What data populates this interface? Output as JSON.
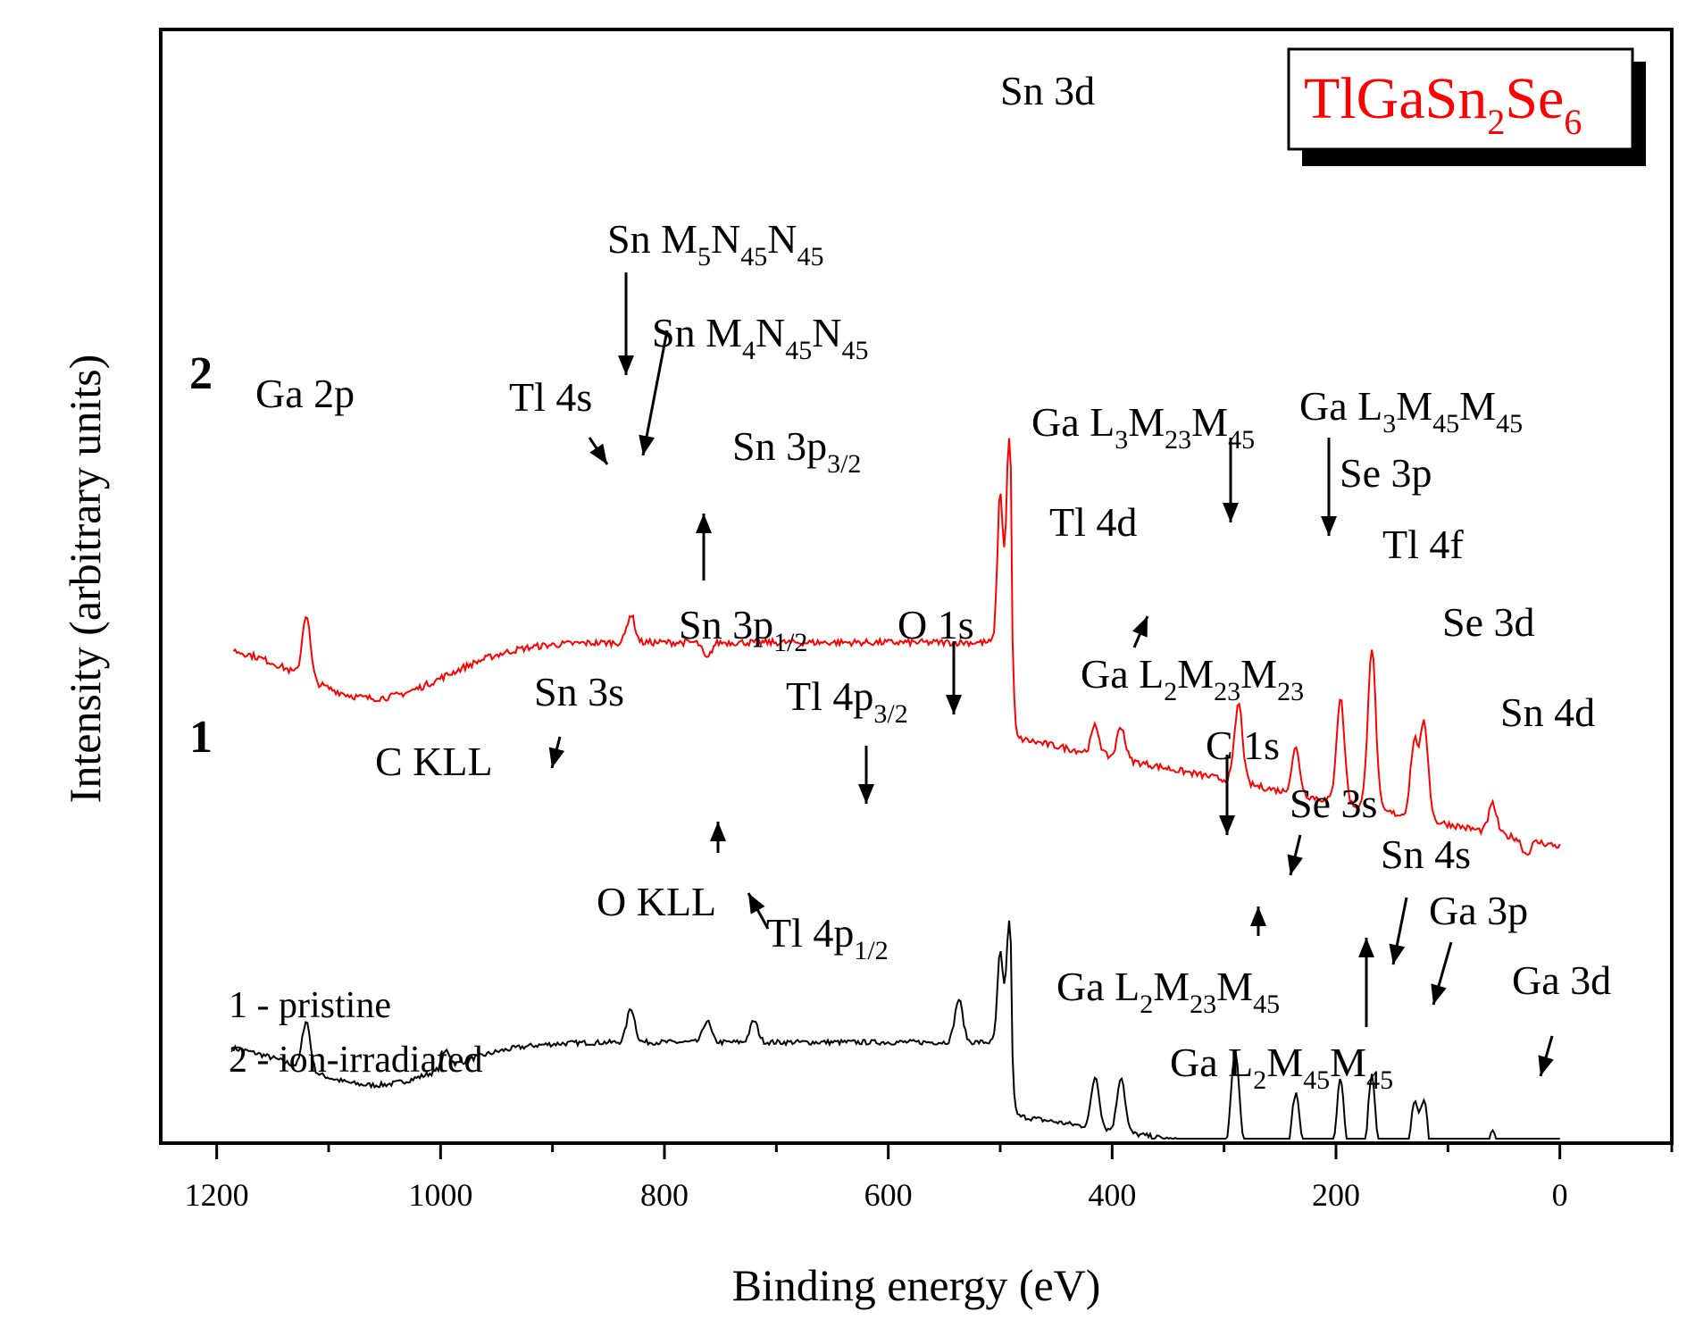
{
  "chart_data": {
    "type": "line",
    "title": "",
    "compound": {
      "base": "TlGaSn",
      "sub1": "2",
      "mid": "Se",
      "sub2": "6",
      "color": "#ff0000"
    },
    "xlabel": "Binding energy (eV)",
    "ylabel": "Intensity (arbitrary units)",
    "xlim": [
      1250,
      -100
    ],
    "x_reversed": true,
    "ylim": [
      0,
      1
    ],
    "x_ticks": [
      1200,
      1000,
      800,
      600,
      400,
      200,
      0
    ],
    "grid": false,
    "series": [
      {
        "name": "1 - pristine",
        "id": "1",
        "color": "#000000",
        "peaks": [
          {
            "x": 1120,
            "y": 0.45
          },
          {
            "x": 995,
            "y": 0.38
          },
          {
            "x": 830,
            "y": 0.48
          },
          {
            "x": 762,
            "y": 0.45
          },
          {
            "x": 720,
            "y": 0.45
          },
          {
            "x": 537,
            "y": 0.5
          },
          {
            "x": 500,
            "y": 0.61
          },
          {
            "x": 492,
            "y": 0.68
          },
          {
            "x": 415,
            "y": 0.32
          },
          {
            "x": 392,
            "y": 0.32
          },
          {
            "x": 290,
            "y": 0.38
          },
          {
            "x": 236,
            "y": 0.28
          },
          {
            "x": 196,
            "y": 0.31
          },
          {
            "x": 168,
            "y": 0.32
          },
          {
            "x": 130,
            "y": 0.26
          },
          {
            "x": 121,
            "y": 0.26
          },
          {
            "x": 60,
            "y": 0.2
          },
          {
            "x": 30,
            "y": 0.13
          }
        ]
      },
      {
        "name": "2 - ion-irradiated",
        "id": "2",
        "color": "#ff0000",
        "peaks": [
          {
            "x": 1120,
            "y": 0.9
          },
          {
            "x": 830,
            "y": 0.9
          },
          {
            "x": 762,
            "y": 0.82
          },
          {
            "x": 720,
            "y": 0.85
          },
          {
            "x": 500,
            "y": 1.12
          },
          {
            "x": 492,
            "y": 1.22
          },
          {
            "x": 415,
            "y": 0.7
          },
          {
            "x": 392,
            "y": 0.7
          },
          {
            "x": 287,
            "y": 0.74
          },
          {
            "x": 236,
            "y": 0.66
          },
          {
            "x": 196,
            "y": 0.75
          },
          {
            "x": 168,
            "y": 0.84
          },
          {
            "x": 130,
            "y": 0.67
          },
          {
            "x": 121,
            "y": 0.7
          },
          {
            "x": 60,
            "y": 0.56
          },
          {
            "x": 30,
            "y": 0.47
          }
        ]
      }
    ],
    "curve_labels": [
      "1",
      "2"
    ],
    "legend": [
      "1 - pristine",
      "2 - ion-irradiated"
    ],
    "annotations": [
      {
        "id": "sn3d",
        "label": "Sn 3d",
        "series": "2"
      },
      {
        "id": "snm5",
        "label": "Sn M",
        "sub": "5",
        "rest": "N",
        "sub2": "45",
        "rest2": "N",
        "sub3": "45",
        "series": "2"
      },
      {
        "id": "snm4",
        "label": "Sn M",
        "sub": "4",
        "rest": "N",
        "sub2": "45",
        "rest2": "N",
        "sub3": "45",
        "series": "2"
      },
      {
        "id": "ga2p",
        "label": "Ga 2p",
        "series": "2"
      },
      {
        "id": "tl4s",
        "label": "Tl 4s",
        "series": "2"
      },
      {
        "id": "sn3p32",
        "label": "Sn 3p",
        "sub": "3/2",
        "series": "2"
      },
      {
        "id": "sn3p12",
        "label": "Sn 3p",
        "sub": "1/2",
        "series": "2"
      },
      {
        "id": "gal3m23",
        "label": "Ga L",
        "sub": "3",
        "rest": "M",
        "sub2": "23",
        "rest2": "M",
        "sub3": "45",
        "series": "2"
      },
      {
        "id": "gal3m45",
        "label": "Ga L",
        "sub": "3",
        "rest": "M",
        "sub2": "45",
        "rest2": "M",
        "sub3": "45",
        "series": "2"
      },
      {
        "id": "se3p",
        "label": "Se 3p",
        "series": "2"
      },
      {
        "id": "tl4d",
        "label": "Tl 4d",
        "series": "2"
      },
      {
        "id": "tl4f",
        "label": "Tl 4f",
        "series": "2"
      },
      {
        "id": "gal2m2323",
        "label": "Ga L",
        "sub": "2",
        "rest": "M",
        "sub2": "23",
        "rest2": "M",
        "sub3": "23",
        "series": "2"
      },
      {
        "id": "se3d",
        "label": "Se 3d",
        "series": "2"
      },
      {
        "id": "sn4d",
        "label": "Sn 4d",
        "series": "2"
      },
      {
        "id": "o1s",
        "label": "O 1s",
        "series": "1"
      },
      {
        "id": "sn3s",
        "label": "Sn 3s",
        "series": "1"
      },
      {
        "id": "ckll",
        "label": "C KLL",
        "series": "1"
      },
      {
        "id": "tl4p32",
        "label": "Tl 4p",
        "sub": "3/2",
        "series": "1"
      },
      {
        "id": "c1s",
        "label": "C 1s",
        "series": "1"
      },
      {
        "id": "se3s",
        "label": "Se 3s",
        "series": "1"
      },
      {
        "id": "sn4s",
        "label": "Sn 4s",
        "series": "1"
      },
      {
        "id": "ga3p",
        "label": "Ga 3p",
        "series": "1"
      },
      {
        "id": "ga3d",
        "label": "Ga 3d",
        "series": "1"
      },
      {
        "id": "okll",
        "label": "O KLL",
        "series": "1"
      },
      {
        "id": "tl4p12",
        "label": "Tl 4p",
        "sub": "1/2",
        "series": "1"
      },
      {
        "id": "gal2m2345",
        "label": "Ga L",
        "sub": "2",
        "rest": "M",
        "sub2": "23",
        "rest2": "M",
        "sub3": "45",
        "series": "1"
      },
      {
        "id": "gal2m4545",
        "label": "Ga L",
        "sub": "2",
        "rest": "M",
        "sub2": "45",
        "rest2": "M",
        "sub3": "45",
        "series": "1"
      }
    ]
  }
}
